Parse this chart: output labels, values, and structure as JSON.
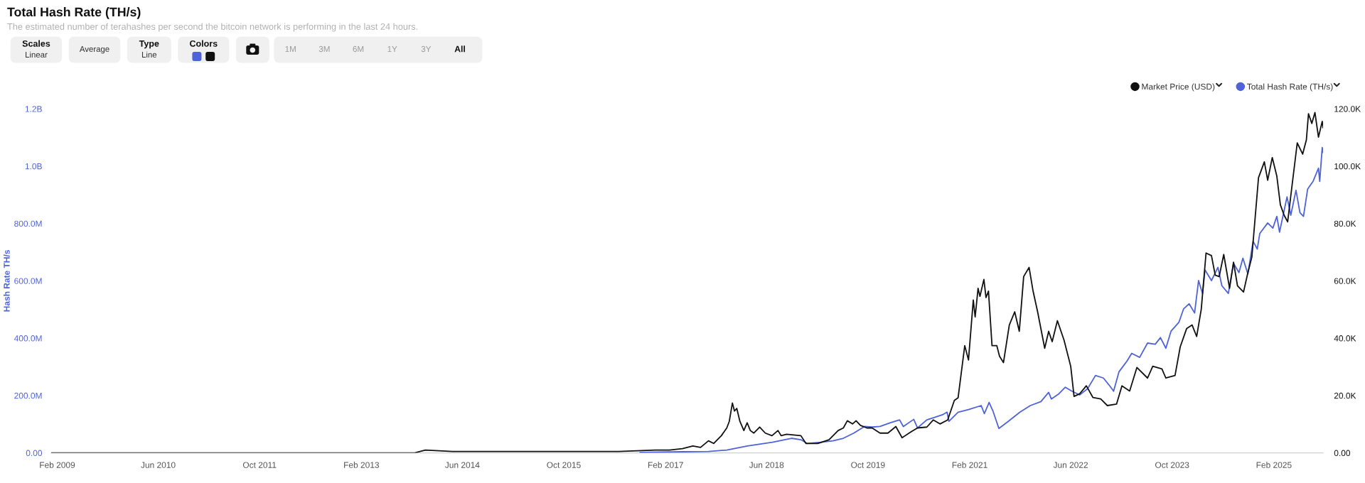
{
  "chart_data": {
    "type": "line",
    "title": "Total Hash Rate (TH/s)",
    "subtitle": "The estimated number of terahashes per second the bitcoin network is performing in the last 24 hours.",
    "ylabel": "Hash Rate TH/s",
    "annotations": [
      "Scales\nLinear",
      "Average",
      "Type\nLine",
      "Colors",
      "1M",
      "3M",
      "6M",
      "1Y",
      "3Y",
      "All"
    ],
    "legend": "top right",
    "xlim": [
      "2009-01-03",
      "2025-09-25"
    ],
    "xticks": [
      {
        "value": "2009-02-01",
        "label": "Feb 2009"
      },
      {
        "value": "2010-06-01",
        "label": "Jun 2010"
      },
      {
        "value": "2011-10-01",
        "label": "Oct 2011"
      },
      {
        "value": "2013-02-01",
        "label": "Feb 2013"
      },
      {
        "value": "2014-06-01",
        "label": "Jun 2014"
      },
      {
        "value": "2015-10-01",
        "label": "Oct 2015"
      },
      {
        "value": "2017-02-01",
        "label": "Feb 2017"
      },
      {
        "value": "2018-06-01",
        "label": "Jun 2018"
      },
      {
        "value": "2019-10-01",
        "label": "Oct 2019"
      },
      {
        "value": "2021-02-01",
        "label": "Feb 2021"
      },
      {
        "value": "2022-06-01",
        "label": "Jun 2022"
      },
      {
        "value": "2023-10-01",
        "label": "Oct 2023"
      },
      {
        "value": "2025-02-01",
        "label": "Feb 2025"
      }
    ],
    "ylim": [
      0,
      1200000000
    ],
    "yticks": [
      {
        "value": 0,
        "label": "0.00"
      },
      {
        "value": 200000000,
        "label": "200.0M"
      },
      {
        "value": 400000000,
        "label": "400.0M"
      },
      {
        "value": 600000000,
        "label": "600.0M"
      },
      {
        "value": 800000000,
        "label": "800.0M"
      },
      {
        "value": 1000000000,
        "label": "1.0B"
      },
      {
        "value": 1200000000,
        "label": "1.2B"
      }
    ],
    "y2lim": [
      0,
      120000
    ],
    "y2ticks": [
      {
        "value": 0,
        "label": "0.00"
      },
      {
        "value": 20000,
        "label": "20.0K"
      },
      {
        "value": 40000,
        "label": "40.0K"
      },
      {
        "value": 60000,
        "label": "60.0K"
      },
      {
        "value": 80000,
        "label": "80.0K"
      },
      {
        "value": 100000,
        "label": "100.0K"
      },
      {
        "value": 120000,
        "label": "120.0K"
      }
    ],
    "series": [
      {
        "name": "Market Price (USD)",
        "color": "#111111",
        "axis": "y2",
        "x": [
          "2009-01-03",
          "2013-10-15",
          "2013-12-05",
          "2014-04-15",
          "2015-06-15",
          "2016-06-20",
          "2016-12-15",
          "2017-02-20",
          "2017-04-23",
          "2017-06-12",
          "2017-07-19",
          "2017-08-26",
          "2017-09-20",
          "2017-10-27",
          "2017-11-22",
          "2017-12-04",
          "2017-12-19",
          "2017-12-29",
          "2018-01-09",
          "2018-01-24",
          "2018-02-12",
          "2018-02-28",
          "2018-03-15",
          "2018-04-01",
          "2018-04-29",
          "2018-05-26",
          "2018-06-27",
          "2018-07-26",
          "2018-08-10",
          "2018-09-05",
          "2018-11-13",
          "2018-12-07",
          "2019-02-02",
          "2019-03-28",
          "2019-05-11",
          "2019-06-05",
          "2019-06-24",
          "2019-07-19",
          "2019-08-05",
          "2019-08-26",
          "2019-09-26",
          "2019-10-21",
          "2019-11-28",
          "2020-01-05",
          "2020-02-12",
          "2020-03-13",
          "2020-04-26",
          "2020-05-26",
          "2020-07-10",
          "2020-08-10",
          "2020-09-11",
          "2020-10-18",
          "2020-11-19",
          "2020-12-07",
          "2021-01-08",
          "2021-01-26",
          "2021-02-18",
          "2021-02-27",
          "2021-03-13",
          "2021-03-22",
          "2021-04-10",
          "2021-04-20",
          "2021-05-02",
          "2021-05-19",
          "2021-06-11",
          "2021-06-24",
          "2021-07-13",
          "2021-08-10",
          "2021-09-05",
          "2021-09-27",
          "2021-10-18",
          "2021-11-13",
          "2021-12-02",
          "2021-12-24",
          "2022-01-27",
          "2022-02-15",
          "2022-03-04",
          "2022-03-29",
          "2022-04-30",
          "2022-06-01",
          "2022-06-17",
          "2022-07-14",
          "2022-08-15",
          "2022-09-16",
          "2022-10-23",
          "2022-11-24",
          "2023-01-07",
          "2023-02-02",
          "2023-03-11",
          "2023-04-15",
          "2023-06-05",
          "2023-06-30",
          "2023-08-13",
          "2023-09-01",
          "2023-10-15",
          "2023-11-09",
          "2023-12-10",
          "2024-01-05",
          "2024-01-27",
          "2024-02-18",
          "2024-03-12",
          "2024-04-07",
          "2024-04-25",
          "2024-05-14",
          "2024-06-05",
          "2024-07-03",
          "2024-07-22",
          "2024-08-10",
          "2024-09-08",
          "2024-09-29",
          "2024-10-18",
          "2024-11-19",
          "2024-12-17",
          "2025-01-02",
          "2025-01-24",
          "2025-02-15",
          "2025-03-04",
          "2025-03-22",
          "2025-04-08",
          "2025-04-30",
          "2025-05-24",
          "2025-06-19",
          "2025-07-07",
          "2025-07-17",
          "2025-08-02",
          "2025-08-17",
          "2025-09-03",
          "2025-09-21",
          "2025-09-25"
        ],
        "values": [
          0,
          0,
          1000,
          500,
          500,
          500,
          1000,
          1000,
          1500,
          2400,
          1900,
          4200,
          3300,
          6000,
          8700,
          11000,
          17400,
          14600,
          15500,
          11000,
          7800,
          10500,
          7800,
          6900,
          9000,
          6900,
          6000,
          7800,
          6000,
          6500,
          6000,
          3300,
          3300,
          4600,
          7800,
          8700,
          11200,
          10100,
          11200,
          9600,
          8700,
          8700,
          6900,
          6900,
          9200,
          5300,
          7400,
          8700,
          9000,
          11500,
          10100,
          11500,
          18300,
          19200,
          37400,
          32400,
          53300,
          47400,
          57400,
          54600,
          60500,
          54200,
          56400,
          37400,
          37400,
          33700,
          31500,
          44600,
          49200,
          42400,
          61500,
          64700,
          56500,
          49200,
          36500,
          42400,
          38800,
          46100,
          39300,
          30200,
          19700,
          20600,
          23400,
          19300,
          18800,
          16500,
          17000,
          23400,
          21600,
          29800,
          26100,
          30200,
          29300,
          26100,
          27000,
          37000,
          43400,
          44600,
          40600,
          50100,
          69700,
          68800,
          62000,
          61500,
          69200,
          57400,
          66500,
          58300,
          56100,
          62900,
          68300,
          96000,
          101500,
          95100,
          103000,
          96500,
          86500,
          82900,
          80600,
          93800,
          108100,
          104200,
          109200,
          118300,
          114900,
          118700,
          110100,
          115600,
          113400
        ]
      },
      {
        "name": "Total Hash Rate (TH/s)",
        "color": "#4f63d9",
        "axis": "y",
        "x": [
          "2016-10-01",
          "2017-04-23",
          "2017-08-26",
          "2017-11-22",
          "2018-03-01",
          "2018-06-29",
          "2018-09-29",
          "2018-11-13",
          "2018-12-13",
          "2019-02-15",
          "2019-04-16",
          "2019-06-05",
          "2019-07-25",
          "2019-09-14",
          "2019-10-21",
          "2019-11-28",
          "2020-01-17",
          "2020-03-01",
          "2020-03-19",
          "2020-05-08",
          "2020-05-26",
          "2020-07-10",
          "2020-08-16",
          "2020-09-23",
          "2020-10-15",
          "2020-10-24",
          "2020-12-07",
          "2021-01-26",
          "2021-03-28",
          "2021-04-12",
          "2021-05-05",
          "2021-05-23",
          "2021-06-21",
          "2021-08-05",
          "2021-09-30",
          "2021-11-19",
          "2022-01-09",
          "2022-02-15",
          "2022-02-28",
          "2022-04-05",
          "2022-05-06",
          "2022-06-07",
          "2022-07-14",
          "2022-08-21",
          "2022-09-28",
          "2022-11-05",
          "2022-12-06",
          "2022-12-24",
          "2023-01-19",
          "2023-02-26",
          "2023-03-21",
          "2023-04-28",
          "2023-06-05",
          "2023-07-12",
          "2023-08-06",
          "2023-09-01",
          "2023-09-26",
          "2023-11-03",
          "2023-11-25",
          "2023-12-22",
          "2024-01-17",
          "2024-02-05",
          "2024-02-24",
          "2024-03-07",
          "2024-04-07",
          "2024-05-08",
          "2024-05-27",
          "2024-06-27",
          "2024-07-22",
          "2024-08-17",
          "2024-09-05",
          "2024-09-29",
          "2024-10-24",
          "2024-11-13",
          "2024-11-25",
          "2025-01-02",
          "2025-01-27",
          "2025-02-15",
          "2025-02-28",
          "2025-04-05",
          "2025-04-23",
          "2025-05-18",
          "2025-06-06",
          "2025-06-23",
          "2025-07-13",
          "2025-08-08",
          "2025-09-03",
          "2025-09-09",
          "2025-09-21",
          "2025-09-25"
        ],
        "values": [
          2000000,
          4000000,
          5000000,
          10000000,
          24000000,
          37000000,
          51000000,
          46000000,
          33000000,
          37000000,
          42000000,
          51000000,
          69000000,
          92000000,
          90000000,
          92000000,
          105000000,
          115000000,
          92000000,
          117000000,
          87000000,
          115000000,
          124000000,
          133000000,
          142000000,
          110000000,
          142000000,
          151000000,
          165000000,
          137000000,
          176000000,
          147000000,
          85000000,
          110000000,
          142000000,
          165000000,
          179000000,
          211000000,
          188000000,
          206000000,
          229000000,
          215000000,
          202000000,
          224000000,
          270000000,
          261000000,
          233000000,
          215000000,
          283000000,
          320000000,
          347000000,
          333000000,
          383000000,
          379000000,
          402000000,
          365000000,
          425000000,
          456000000,
          502000000,
          520000000,
          488000000,
          601000000,
          556000000,
          638000000,
          601000000,
          647000000,
          583000000,
          556000000,
          661000000,
          629000000,
          679000000,
          624000000,
          738000000,
          711000000,
          765000000,
          802000000,
          784000000,
          825000000,
          770000000,
          893000000,
          829000000,
          916000000,
          838000000,
          825000000,
          920000000,
          947000000,
          993000000,
          947000000,
          1065000000,
          1047000000
        ]
      }
    ]
  }
}
